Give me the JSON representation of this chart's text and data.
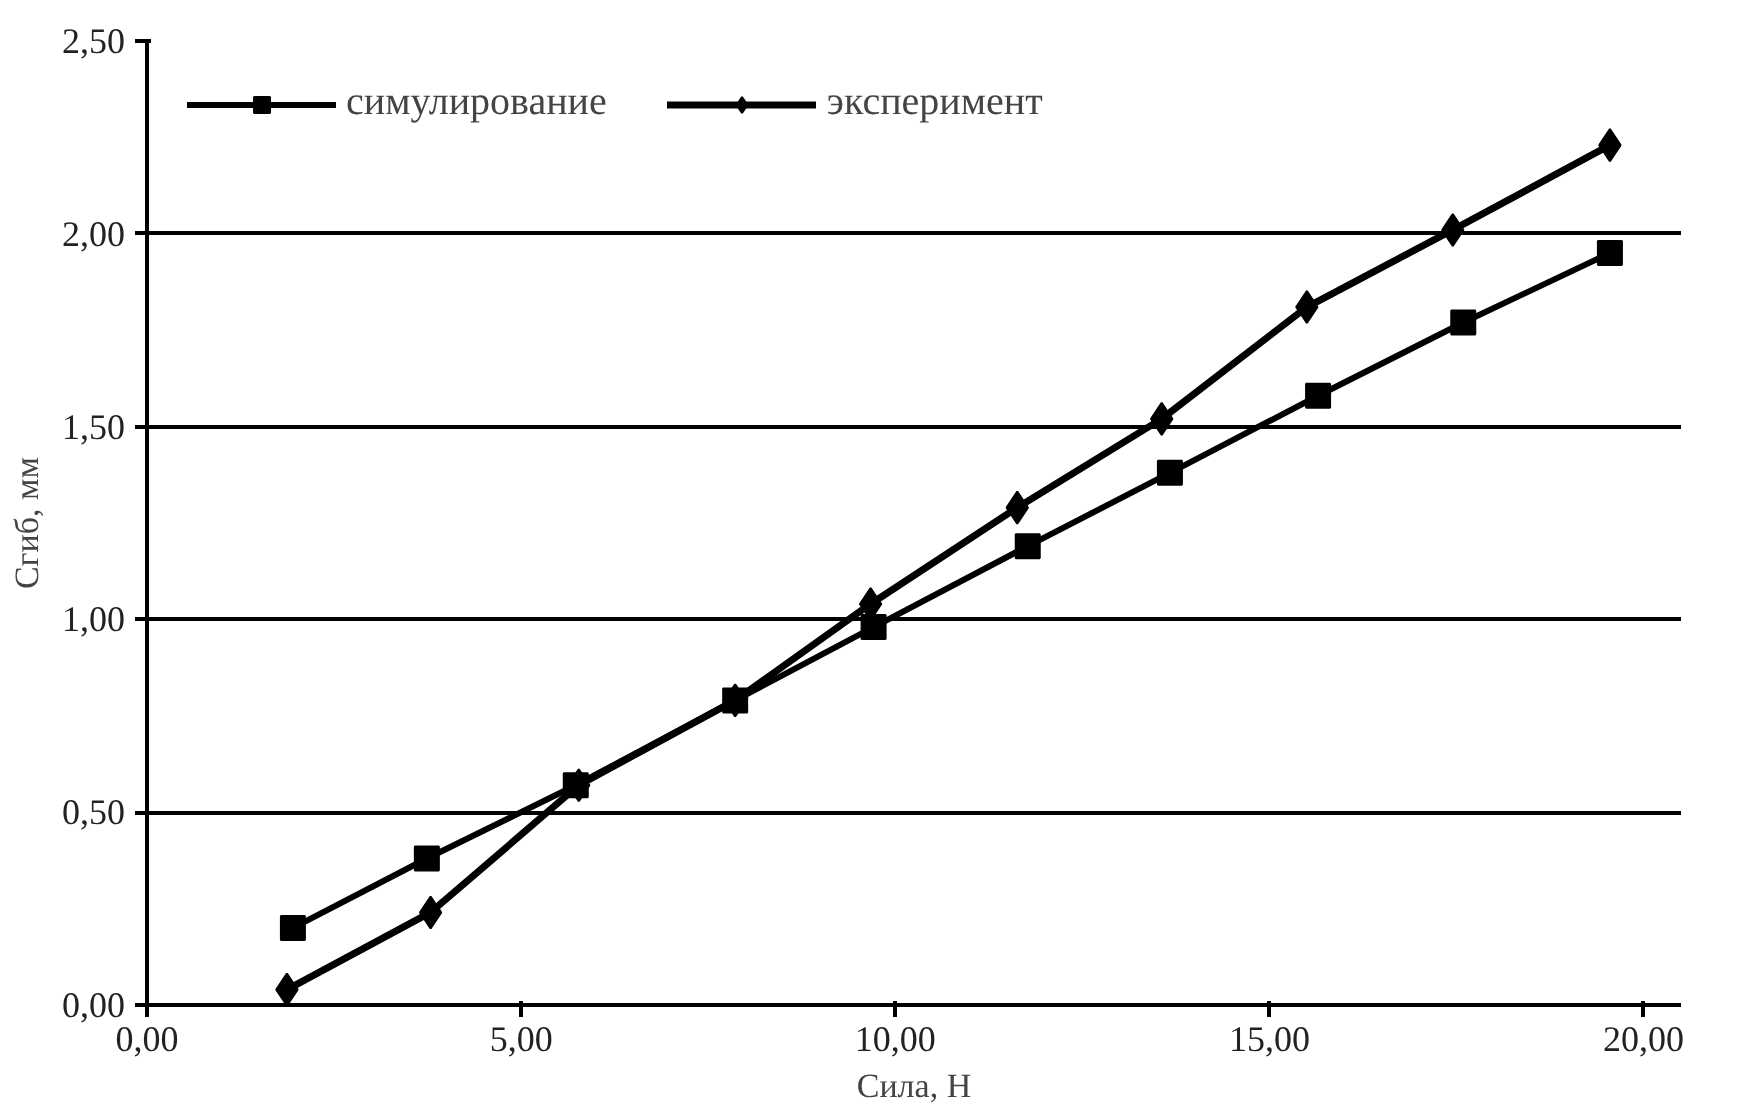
{
  "chart_data": {
    "type": "line",
    "xlabel": "Сила, Н",
    "ylabel": "Сгиб, мм",
    "xlim": [
      0,
      20.5
    ],
    "ylim": [
      0,
      2.5
    ],
    "xticks": [
      {
        "value": 0,
        "label": "0,00"
      },
      {
        "value": 5,
        "label": "5,00"
      },
      {
        "value": 10,
        "label": "10,00"
      },
      {
        "value": 15,
        "label": "15,00"
      },
      {
        "value": 20,
        "label": "20,00"
      }
    ],
    "yticks": [
      {
        "value": 0,
        "label": "0,00"
      },
      {
        "value": 0.5,
        "label": "0,50"
      },
      {
        "value": 1,
        "label": "1,00"
      },
      {
        "value": 1.5,
        "label": "1,50"
      },
      {
        "value": 2,
        "label": "2,00"
      },
      {
        "value": 2.5,
        "label": "2,50"
      }
    ],
    "grid": "y",
    "legend": "top left",
    "series": [
      {
        "name": "симулирование",
        "color": "#000000",
        "marker": "square",
        "x": [
          1.95,
          3.74,
          5.73,
          7.86,
          9.71,
          11.77,
          13.67,
          15.65,
          17.59,
          19.55
        ],
        "values": [
          0.2,
          0.38,
          0.57,
          0.79,
          0.98,
          1.19,
          1.38,
          1.58,
          1.77,
          1.95
        ]
      },
      {
        "name": "эксперимент",
        "color": "#000000",
        "marker": "diamond",
        "x": [
          1.87,
          3.79,
          5.77,
          7.86,
          9.67,
          11.63,
          13.56,
          15.5,
          17.45,
          19.55
        ],
        "values": [
          0.04,
          0.24,
          0.57,
          0.79,
          1.04,
          1.29,
          1.52,
          1.81,
          2.01,
          2.23
        ]
      }
    ]
  }
}
